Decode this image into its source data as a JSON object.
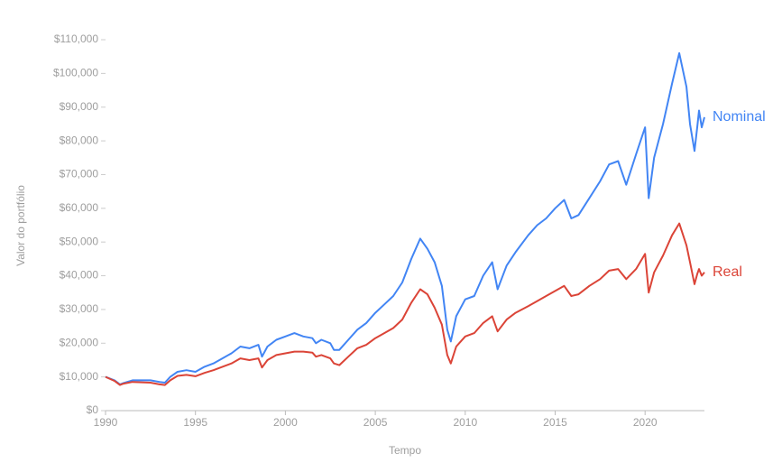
{
  "chart_data": {
    "type": "line",
    "x_label": "Tempo",
    "y_label": "Valor do portfólio",
    "x": [
      1990.0,
      1990.5,
      1990.8,
      1991.0,
      1991.5,
      1992.0,
      1992.5,
      1993.0,
      1993.3,
      1993.6,
      1994.0,
      1994.5,
      1995.0,
      1995.5,
      1996.0,
      1996.5,
      1997.0,
      1997.5,
      1998.0,
      1998.5,
      1998.7,
      1999.0,
      1999.5,
      2000.0,
      2000.5,
      2001.0,
      2001.5,
      2001.7,
      2002.0,
      2002.5,
      2002.7,
      2003.0,
      2003.5,
      2004.0,
      2004.5,
      2005.0,
      2005.5,
      2006.0,
      2006.5,
      2007.0,
      2007.5,
      2007.9,
      2008.3,
      2008.7,
      2009.0,
      2009.2,
      2009.5,
      2010.0,
      2010.5,
      2011.0,
      2011.5,
      2011.8,
      2012.3,
      2012.8,
      2013.5,
      2014.0,
      2014.5,
      2015.0,
      2015.5,
      2015.9,
      2016.3,
      2016.9,
      2017.5,
      2018.0,
      2018.5,
      2018.95,
      2019.5,
      2020.0,
      2020.2,
      2020.5,
      2021.0,
      2021.5,
      2021.9,
      2022.3,
      2022.5,
      2022.75,
      2022.9,
      2023.0,
      2023.15,
      2023.3
    ],
    "series": [
      {
        "name": "Nominal",
        "color": "#4285f4",
        "values": [
          10000,
          9000,
          7800,
          8200,
          9000,
          9000,
          9000,
          8500,
          8300,
          10000,
          11500,
          12000,
          11500,
          13000,
          14000,
          15500,
          17000,
          19000,
          18500,
          19500,
          16000,
          19000,
          21000,
          22000,
          23000,
          22000,
          21500,
          20000,
          21000,
          20000,
          18000,
          18000,
          21000,
          24000,
          26000,
          29000,
          31500,
          34000,
          38000,
          45000,
          51000,
          48000,
          44000,
          37000,
          24000,
          20500,
          28000,
          33000,
          34000,
          40000,
          44000,
          36000,
          43000,
          47000,
          52000,
          55000,
          57000,
          60000,
          62500,
          57000,
          58000,
          63000,
          68000,
          73000,
          74000,
          67000,
          76000,
          84000,
          63000,
          75000,
          85000,
          97000,
          106000,
          96000,
          85000,
          77000,
          84000,
          89000,
          84000,
          87000
        ]
      },
      {
        "name": "Real",
        "color": "#db4437",
        "values": [
          10000,
          8800,
          7600,
          8000,
          8500,
          8400,
          8300,
          7800,
          7600,
          9000,
          10300,
          10600,
          10200,
          11200,
          12000,
          13000,
          14000,
          15500,
          15000,
          15500,
          12800,
          15000,
          16500,
          17000,
          17500,
          17500,
          17200,
          16000,
          16500,
          15500,
          14000,
          13500,
          16000,
          18500,
          19500,
          21500,
          23000,
          24500,
          27000,
          32000,
          36000,
          34500,
          30500,
          25500,
          16500,
          14000,
          19000,
          22000,
          23000,
          26000,
          28000,
          23500,
          27000,
          29000,
          31000,
          32500,
          34000,
          35500,
          37000,
          34000,
          34500,
          37000,
          39000,
          41500,
          42000,
          39000,
          42000,
          46500,
          35000,
          41000,
          46000,
          52000,
          55500,
          49000,
          44000,
          37500,
          40500,
          42000,
          40000,
          41000
        ]
      }
    ],
    "xlim": [
      1990,
      2023.3
    ],
    "xticks": [
      1990,
      1995,
      2000,
      2005,
      2010,
      2015,
      2020
    ],
    "ylim": [
      0,
      110000
    ],
    "yticks": [
      {
        "value": 0,
        "label": "$0"
      },
      {
        "value": 10000,
        "label": "$10,000"
      },
      {
        "value": 20000,
        "label": "$20,000"
      },
      {
        "value": 30000,
        "label": "$30,000"
      },
      {
        "value": 40000,
        "label": "$40,000"
      },
      {
        "value": 50000,
        "label": "$50,000"
      },
      {
        "value": 60000,
        "label": "$60,000"
      },
      {
        "value": 70000,
        "label": "$70,000"
      },
      {
        "value": 80000,
        "label": "$80,000"
      },
      {
        "value": 90000,
        "label": "$90,000"
      },
      {
        "value": 100000,
        "label": "$100,000"
      },
      {
        "value": 110000,
        "label": "$110,000"
      }
    ]
  }
}
